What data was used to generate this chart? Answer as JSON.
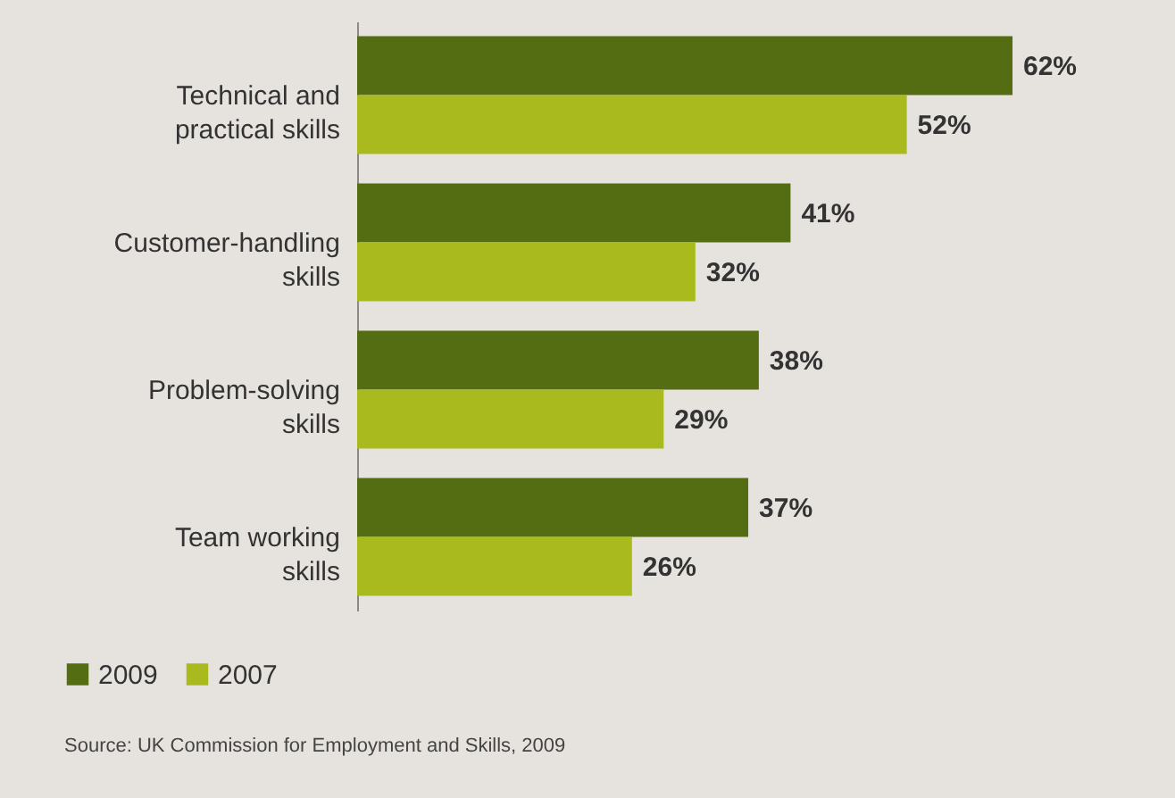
{
  "chart_data": {
    "type": "bar",
    "orientation": "horizontal",
    "categories": [
      "Technical and practical skills",
      "Customer-handling skills",
      "Problem-solving skills",
      "Team working skills"
    ],
    "series": [
      {
        "name": "2009",
        "color": "#546c12",
        "values": [
          62,
          41,
          38,
          37
        ],
        "value_labels": [
          "62%",
          "41%",
          "38%",
          "37%"
        ]
      },
      {
        "name": "2007",
        "color": "#a8ba1e",
        "values": [
          52,
          32,
          29,
          26
        ],
        "value_labels": [
          "52%",
          "32%",
          "29%",
          "26%"
        ]
      }
    ],
    "legend": "bottom left",
    "grid": false,
    "annotations": [
      "Source: UK Commission for Employment and Skills, 2009"
    ]
  }
}
